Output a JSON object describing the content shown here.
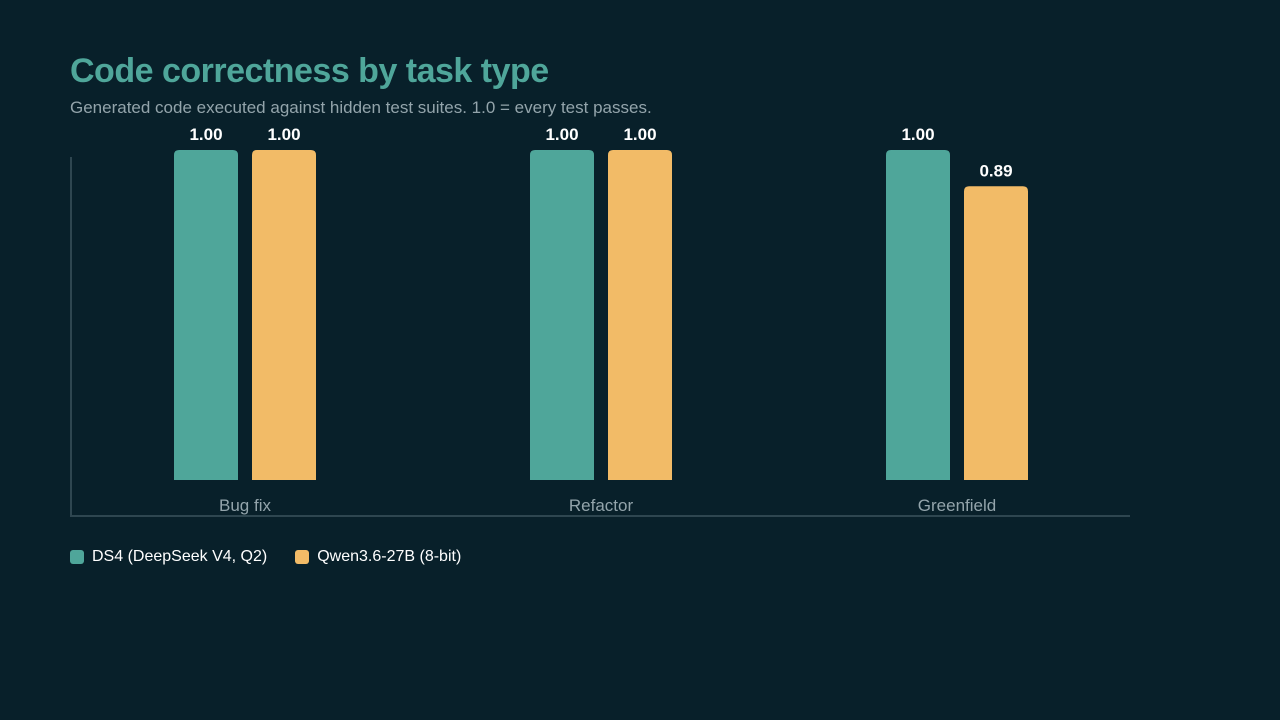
{
  "chart_data": {
    "type": "bar",
    "title": "Code correctness by task type",
    "subtitle": "Generated code executed against hidden test suites. 1.0 = every test passes.",
    "categories": [
      "Bug fix",
      "Refactor",
      "Greenfield"
    ],
    "series": [
      {
        "name": "DS4 (DeepSeek V4, Q2)",
        "values": [
          1.0,
          1.0,
          1.0
        ],
        "color": "#4fa69a"
      },
      {
        "name": "Qwen3.6-27B (8-bit)",
        "values": [
          1.0,
          1.0,
          0.89
        ],
        "color": "#f2bb67"
      }
    ],
    "value_labels": [
      [
        "1.00",
        "1.00",
        "1.00"
      ],
      [
        "1.00",
        "1.00",
        "0.89"
      ]
    ],
    "ylim": [
      0,
      1
    ],
    "grid": false,
    "legend_position": "bottom-left"
  }
}
